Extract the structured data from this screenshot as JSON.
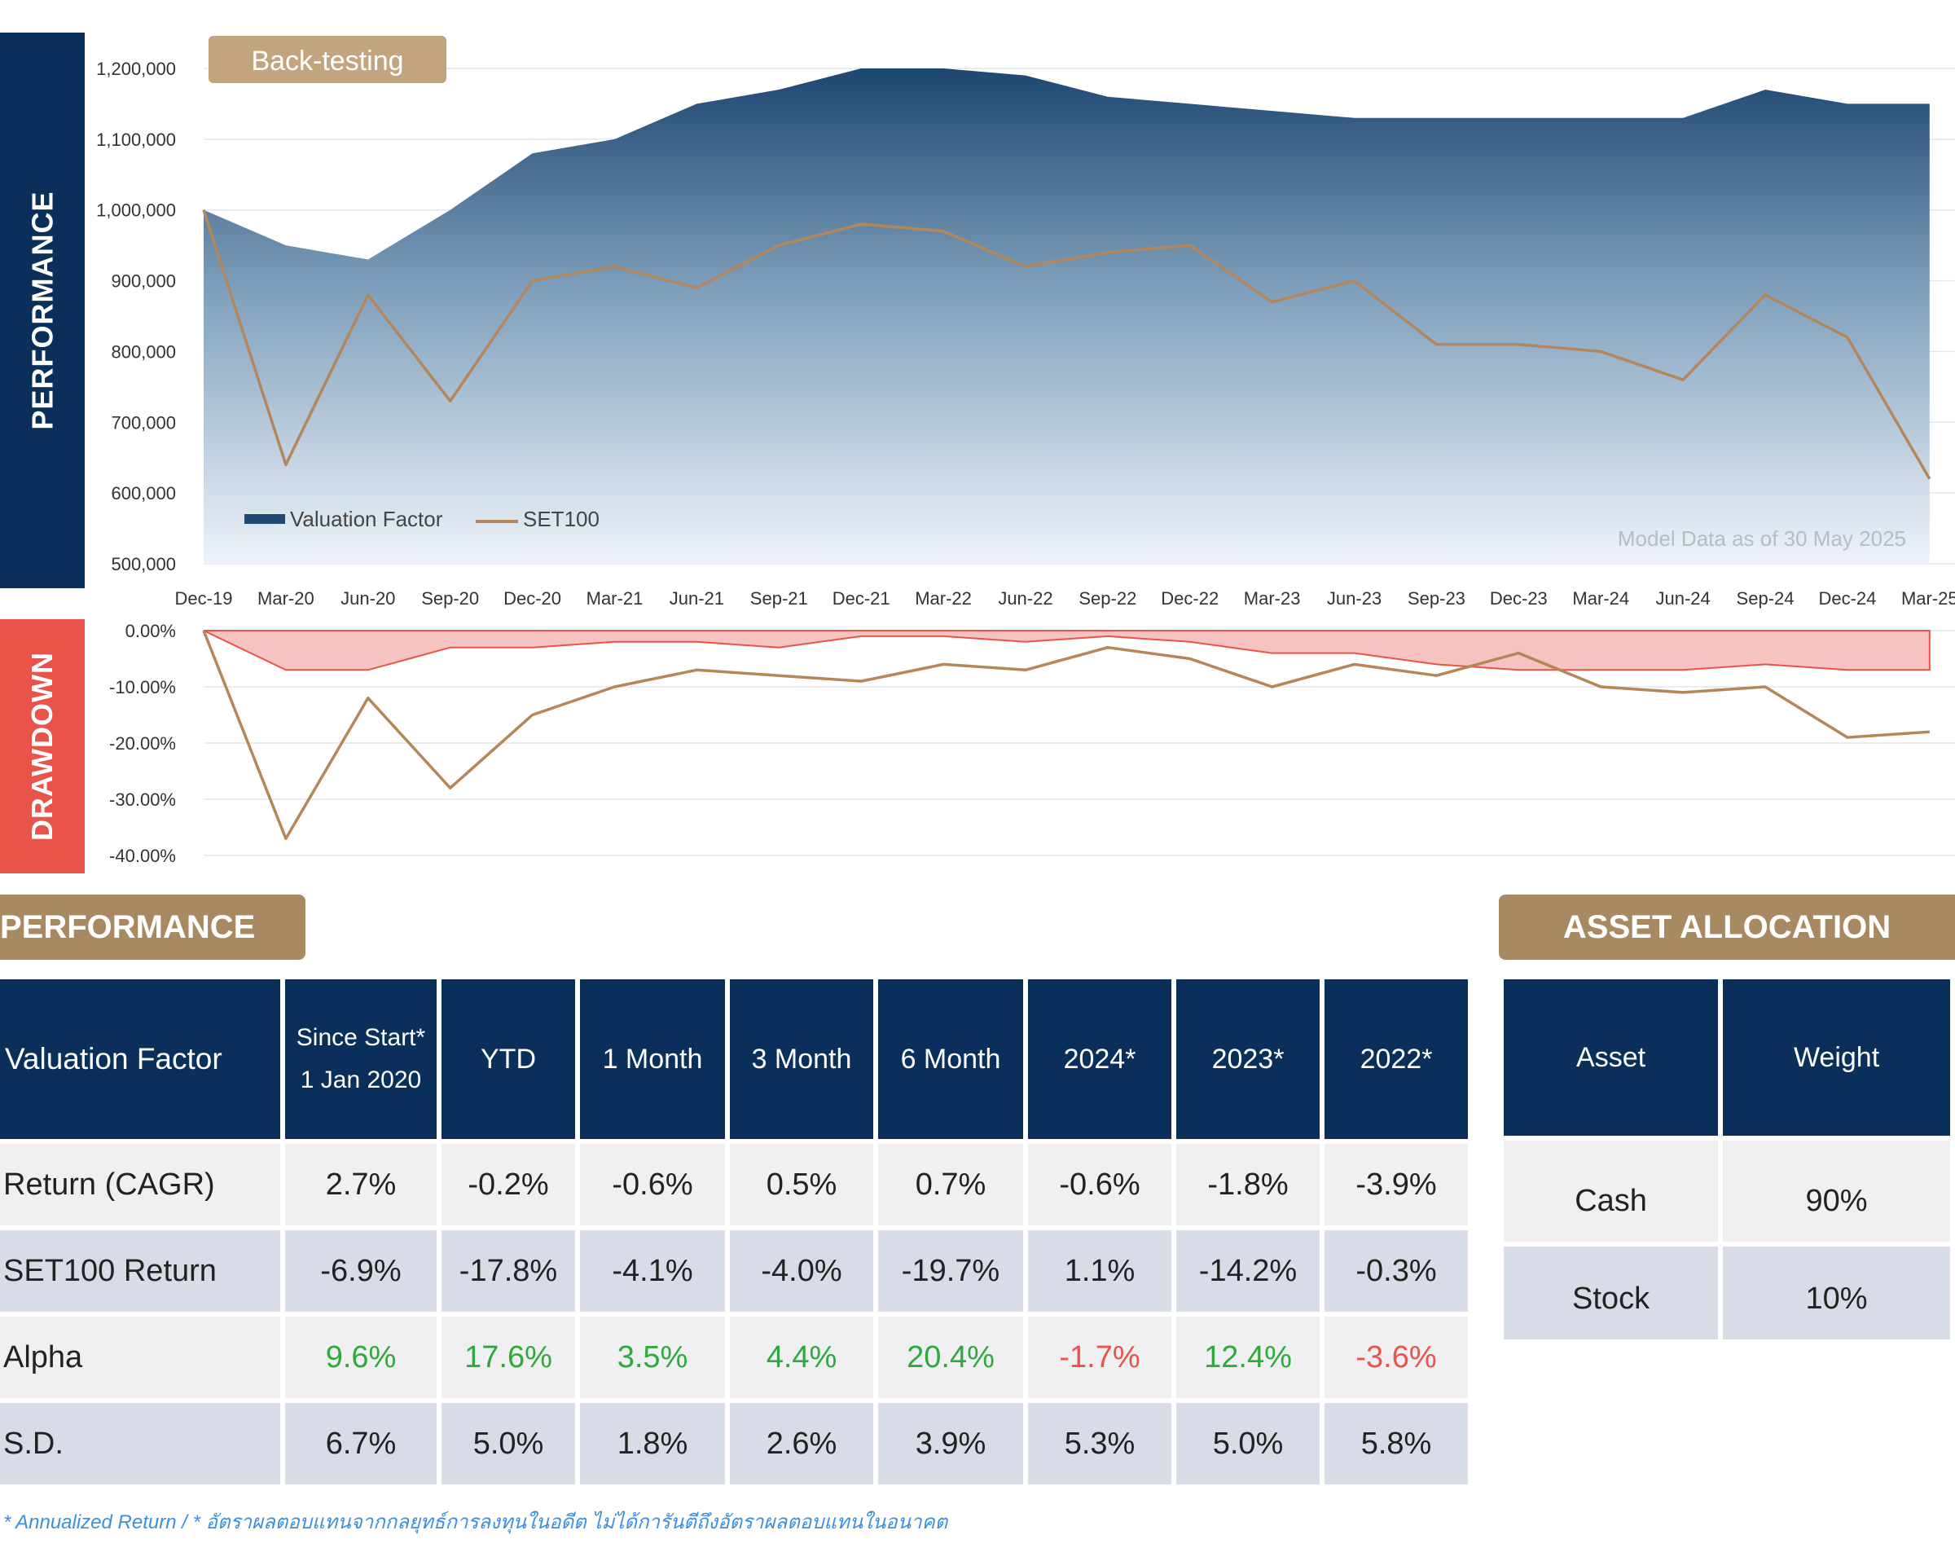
{
  "side_tabs": {
    "performance": "PERFORMANCE",
    "drawdown": "DRAWDOWN"
  },
  "backtest_label": "Back-testing",
  "model_note": "Model Data as of 30 May 2025",
  "chart_data": [
    {
      "type": "area",
      "title": "Performance",
      "x_ticks": [
        "Dec-19",
        "Mar-20",
        "Jun-20",
        "Sep-20",
        "Dec-20",
        "Mar-21",
        "Jun-21",
        "Sep-21",
        "Dec-21",
        "Mar-22",
        "Jun-22",
        "Sep-22",
        "Dec-22",
        "Mar-23",
        "Jun-23",
        "Sep-23",
        "Dec-23",
        "Mar-24",
        "Jun-24",
        "Sep-24",
        "Dec-24",
        "Mar-25"
      ],
      "ylim": [
        500000,
        1200000
      ],
      "y_ticks": [
        500000,
        600000,
        700000,
        800000,
        900000,
        1000000,
        1100000,
        1200000
      ],
      "y_tick_labels": [
        "500,000",
        "600,000",
        "700,000",
        "800,000",
        "900,000",
        "1,000,000",
        "1,100,000",
        "1,200,000"
      ],
      "legend": [
        "Valuation Factor",
        "SET100"
      ],
      "series": [
        {
          "name": "Valuation Factor",
          "style": "area",
          "color": "#1f4a73",
          "values": [
            1000000,
            950000,
            930000,
            1000000,
            1080000,
            1100000,
            1150000,
            1170000,
            1200000,
            1200000,
            1190000,
            1160000,
            1150000,
            1140000,
            1130000,
            1130000,
            1130000,
            1130000,
            1130000,
            1170000,
            1150000,
            1150000
          ]
        },
        {
          "name": "SET100",
          "style": "line",
          "color": "#b5865a",
          "values": [
            1000000,
            640000,
            880000,
            730000,
            900000,
            920000,
            890000,
            950000,
            980000,
            970000,
            920000,
            940000,
            950000,
            870000,
            900000,
            810000,
            810000,
            800000,
            760000,
            880000,
            820000,
            620000
          ]
        }
      ]
    },
    {
      "type": "line",
      "title": "Drawdown",
      "x_ticks": [
        "Dec-19",
        "Mar-20",
        "Jun-20",
        "Sep-20",
        "Dec-20",
        "Mar-21",
        "Jun-21",
        "Sep-21",
        "Dec-21",
        "Mar-22",
        "Jun-22",
        "Sep-22",
        "Dec-22",
        "Mar-23",
        "Jun-23",
        "Sep-23",
        "Dec-23",
        "Mar-24",
        "Jun-24",
        "Sep-24",
        "Dec-24",
        "Mar-25"
      ],
      "ylim": [
        -40,
        0
      ],
      "y_ticks": [
        0,
        -10,
        -20,
        -30,
        -40
      ],
      "y_tick_labels": [
        "0.00%",
        "-10.00%",
        "-20.00%",
        "-30.00%",
        "-40.00%"
      ],
      "series": [
        {
          "name": "Valuation Factor",
          "style": "area",
          "color": "#e8534a",
          "values": [
            0,
            -7,
            -7,
            -3,
            -3,
            -2,
            -2,
            -3,
            -1,
            -1,
            -2,
            -1,
            -2,
            -4,
            -4,
            -6,
            -7,
            -7,
            -7,
            -6,
            -7,
            -7
          ]
        },
        {
          "name": "SET100",
          "style": "line",
          "color": "#b5865a",
          "values": [
            0,
            -37,
            -12,
            -28,
            -15,
            -10,
            -7,
            -8,
            -9,
            -6,
            -7,
            -3,
            -5,
            -10,
            -6,
            -8,
            -4,
            -10,
            -11,
            -10,
            -19,
            -18
          ]
        }
      ]
    }
  ],
  "performance_section": {
    "title": "PERFORMANCE",
    "header": {
      "label": "Valuation Factor",
      "since_start_1": "Since Start*",
      "since_start_2": "1 Jan 2020",
      "cols": [
        "YTD",
        "1 Month",
        "3 Month",
        "6 Month",
        "2024*",
        "2023*",
        "2022*"
      ]
    },
    "rows": [
      {
        "label": "Return (CAGR)",
        "values": [
          "2.7%",
          "-0.2%",
          "-0.6%",
          "0.5%",
          "0.7%",
          "-0.6%",
          "-1.8%",
          "-3.9%"
        ]
      },
      {
        "label": "SET100 Return",
        "values": [
          "-6.9%",
          "-17.8%",
          "-4.1%",
          "-4.0%",
          "-19.7%",
          "1.1%",
          "-14.2%",
          "-0.3%"
        ]
      },
      {
        "label": "Alpha",
        "values": [
          "9.6%",
          "17.6%",
          "3.5%",
          "4.4%",
          "20.4%",
          "-1.7%",
          "12.4%",
          "-3.6%"
        ]
      },
      {
        "label": "S.D.",
        "values": [
          "6.7%",
          "5.0%",
          "1.8%",
          "2.6%",
          "3.9%",
          "5.3%",
          "5.0%",
          "5.8%"
        ]
      }
    ],
    "colors": {
      "positive": "#2eaa3a",
      "negative": "#e8534a"
    }
  },
  "allocation_section": {
    "title": "ASSET ALLOCATION",
    "headers": [
      "Asset",
      "Weight"
    ],
    "rows": [
      [
        "Cash",
        "90%"
      ],
      [
        "Stock",
        "10%"
      ]
    ]
  },
  "footnote": "* Annualized Return / * อัตราผลตอบแทนจากกลยุทธ์การลงทุนในอดีต ไม่ได้การันตีถึงอัตราผลตอบแทนในอนาคต"
}
